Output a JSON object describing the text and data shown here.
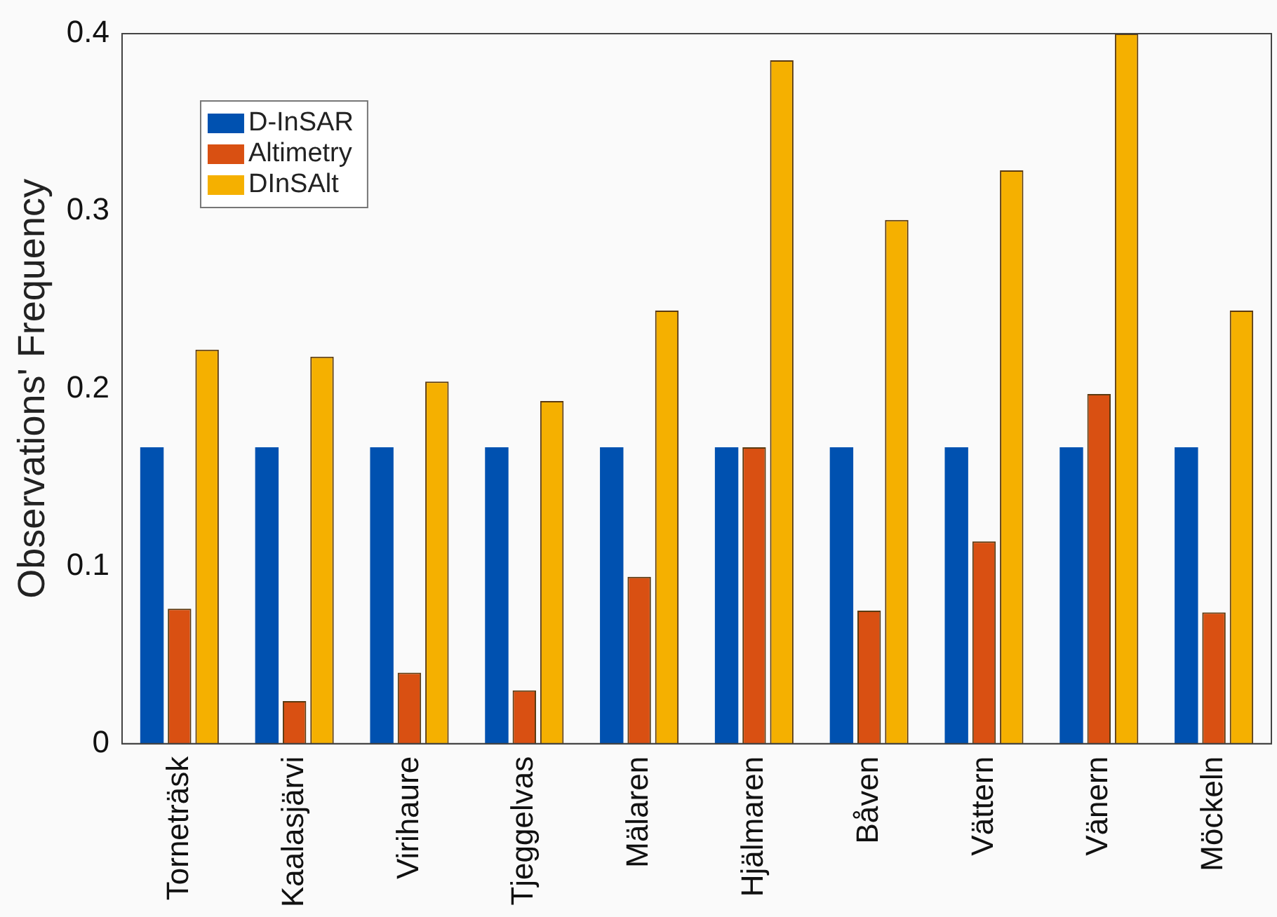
{
  "chart_data": {
    "type": "bar",
    "ylabel": "Observations' Frequency",
    "categories": [
      "Torneträsk",
      "Kaalasjärvi",
      "Virihaure",
      "Tjeggelvas",
      "Mälaren",
      "Hjälmaren",
      "Båven",
      "Vättern",
      "Vänern",
      "Möckeln"
    ],
    "series": [
      {
        "name": "D-InSAR",
        "color": "#0051b0",
        "values": [
          0.167,
          0.167,
          0.167,
          0.167,
          0.167,
          0.167,
          0.167,
          0.167,
          0.167,
          0.167
        ]
      },
      {
        "name": "Altimetry",
        "color": "#d95012",
        "values": [
          0.076,
          0.024,
          0.04,
          0.03,
          0.094,
          0.167,
          0.075,
          0.114,
          0.197,
          0.074
        ]
      },
      {
        "name": "DInSAlt",
        "color": "#f5b000",
        "values": [
          0.222,
          0.218,
          0.204,
          0.193,
          0.244,
          0.385,
          0.295,
          0.323,
          0.4,
          0.244
        ]
      }
    ],
    "ylim": [
      0,
      0.4
    ],
    "yticks": [
      0,
      0.1,
      0.2,
      0.3,
      0.4
    ],
    "grid": false,
    "legend": "top left"
  }
}
